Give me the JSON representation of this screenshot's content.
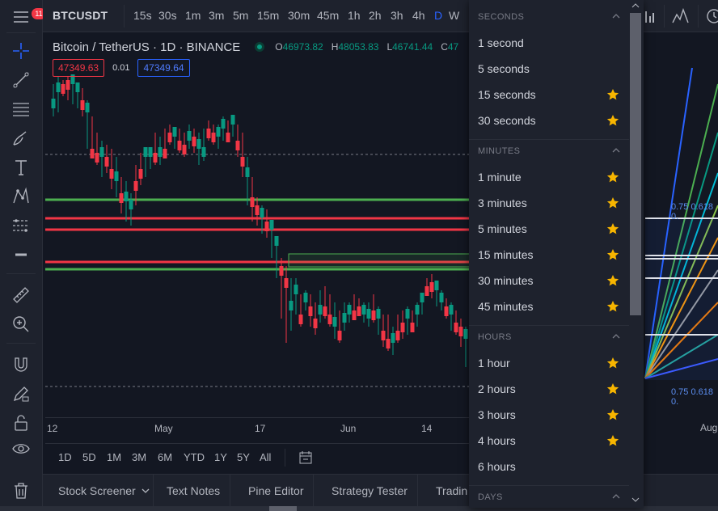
{
  "app": {
    "notifications_count": "11"
  },
  "top": {
    "symbol": "BTCUSDT",
    "timeframes": [
      "15s",
      "30s",
      "1m",
      "3m",
      "5m",
      "15m",
      "30m",
      "45m",
      "1h",
      "2h",
      "3h",
      "4h",
      "D",
      "W"
    ],
    "active_timeframe": "D"
  },
  "legend": {
    "title": "Bitcoin / TetherUS · 1D · BINANCE",
    "open_label": "O",
    "open": "46973.82",
    "high_label": "H",
    "high": "48053.83",
    "low_label": "L",
    "low": "46741.44",
    "close_label": "C",
    "close": "47"
  },
  "quote": {
    "bid": "47349.63",
    "spread": "0.01",
    "ask": "47349.64"
  },
  "time_axis": {
    "labels": [
      "12",
      "May",
      "17",
      "Jun",
      "14",
      "Aug"
    ]
  },
  "ranges": [
    "1D",
    "5D",
    "1M",
    "3M",
    "6M",
    "YTD",
    "1Y",
    "5Y",
    "All"
  ],
  "bottom_tabs": [
    "Stock Screener",
    "Text Notes",
    "Pine Editor",
    "Strategy Tester",
    "Tradin"
  ],
  "fib_labels": {
    "upper": "0.75 0.618 0.",
    "lower": "0.75 0.618 0."
  },
  "dropdown": {
    "sections": [
      {
        "title": "SECONDS",
        "items": [
          {
            "label": "1 second",
            "favorite": false
          },
          {
            "label": "5 seconds",
            "favorite": false
          },
          {
            "label": "15 seconds",
            "favorite": true
          },
          {
            "label": "30 seconds",
            "favorite": true
          }
        ]
      },
      {
        "title": "MINUTES",
        "items": [
          {
            "label": "1 minute",
            "favorite": true
          },
          {
            "label": "3 minutes",
            "favorite": true
          },
          {
            "label": "5 minutes",
            "favorite": true
          },
          {
            "label": "15 minutes",
            "favorite": true
          },
          {
            "label": "30 minutes",
            "favorite": true
          },
          {
            "label": "45 minutes",
            "favorite": true
          }
        ]
      },
      {
        "title": "HOURS",
        "items": [
          {
            "label": "1 hour",
            "favorite": true
          },
          {
            "label": "2 hours",
            "favorite": true
          },
          {
            "label": "3 hours",
            "favorite": true
          },
          {
            "label": "4 hours",
            "favorite": true
          },
          {
            "label": "6 hours",
            "favorite": false
          }
        ]
      },
      {
        "title": "DAYS",
        "items": []
      }
    ]
  },
  "colors": {
    "up": "#089981",
    "down": "#f23645",
    "accent": "#2962ff",
    "star": "#f7b500"
  }
}
